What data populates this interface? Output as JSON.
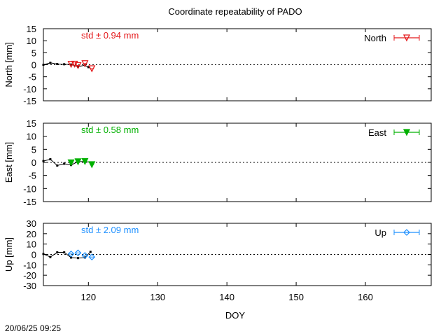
{
  "title": "Coordinate repeatability of PADO",
  "timestamp": "20/06/25 09:25",
  "xlabel": "DOY",
  "x_ticks": [
    120,
    130,
    140,
    150,
    160
  ],
  "chart_data": [
    {
      "type": "scatter",
      "ylabel": "North [mm]",
      "legend": "North",
      "legend_position": "top-right",
      "std_label": "std ± 0.94 mm",
      "color": "#e41a1c",
      "marker": "triangle-down-open",
      "xlim": [
        113.5,
        169.5
      ],
      "ylim": [
        -15,
        15
      ],
      "y_ticks": [
        -15,
        -10,
        -5,
        0,
        5,
        10,
        15
      ],
      "grid": false,
      "black_points": [
        {
          "x": 113.5,
          "y": 0.0
        },
        {
          "x": 114.5,
          "y": 0.8
        },
        {
          "x": 115.5,
          "y": 0.3
        },
        {
          "x": 116.5,
          "y": 0.2
        },
        {
          "x": 117.5,
          "y": 0.1
        },
        {
          "x": 118.5,
          "y": -0.8
        },
        {
          "x": 119.5,
          "y": -0.2
        },
        {
          "x": 120.0,
          "y": -1.0
        }
      ],
      "series_points": [
        {
          "x": 117.5,
          "y": 0.2
        },
        {
          "x": 118.0,
          "y": 0.3
        },
        {
          "x": 118.5,
          "y": -0.3
        },
        {
          "x": 119.5,
          "y": 0.5
        },
        {
          "x": 120.5,
          "y": -1.6
        }
      ]
    },
    {
      "type": "scatter",
      "ylabel": "East [mm]",
      "legend": "East",
      "legend_position": "top-right",
      "std_label": "std ± 0.58 mm",
      "color": "#00b000",
      "marker": "triangle-down-filled",
      "xlim": [
        113.5,
        169.5
      ],
      "ylim": [
        -15,
        15
      ],
      "y_ticks": [
        -15,
        -10,
        -5,
        0,
        5,
        10,
        15
      ],
      "grid": false,
      "black_points": [
        {
          "x": 113.5,
          "y": 0.5
        },
        {
          "x": 114.5,
          "y": 1.2
        },
        {
          "x": 115.5,
          "y": -1.2
        },
        {
          "x": 116.5,
          "y": -0.5
        },
        {
          "x": 117.5,
          "y": -1.0
        },
        {
          "x": 118.5,
          "y": 0.3
        },
        {
          "x": 119.5,
          "y": 0.3
        },
        {
          "x": 120.5,
          "y": 0.0
        }
      ],
      "series_points": [
        {
          "x": 117.5,
          "y": -0.1
        },
        {
          "x": 118.5,
          "y": 0.3
        },
        {
          "x": 119.5,
          "y": 0.4
        },
        {
          "x": 120.5,
          "y": -0.8
        }
      ]
    },
    {
      "type": "scatter",
      "ylabel": "Up [mm]",
      "legend": "Up",
      "legend_position": "top-right",
      "std_label": "std ± 2.09 mm",
      "color": "#1e90ff",
      "marker": "diamond-open",
      "xlim": [
        113.5,
        169.5
      ],
      "ylim": [
        -30,
        30
      ],
      "y_ticks": [
        -30,
        -20,
        -10,
        0,
        10,
        20,
        30
      ],
      "grid": false,
      "black_points": [
        {
          "x": 113.5,
          "y": 0.5
        },
        {
          "x": 114.5,
          "y": -2.5
        },
        {
          "x": 115.5,
          "y": 2.0
        },
        {
          "x": 116.5,
          "y": 2.0
        },
        {
          "x": 117.5,
          "y": -3.0
        },
        {
          "x": 118.5,
          "y": -3.5
        },
        {
          "x": 119.5,
          "y": -3.0
        },
        {
          "x": 120.3,
          "y": 2.5
        }
      ],
      "series_points": [
        {
          "x": 117.5,
          "y": 0.5
        },
        {
          "x": 118.5,
          "y": 1.5
        },
        {
          "x": 119.5,
          "y": -1.0
        },
        {
          "x": 120.5,
          "y": -2.5
        }
      ]
    }
  ]
}
